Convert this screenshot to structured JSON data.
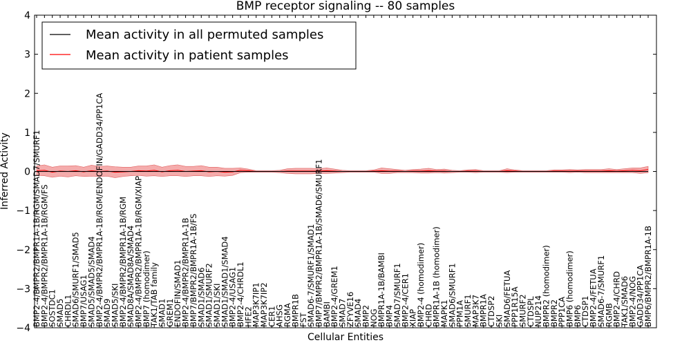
{
  "chart_data": {
    "type": "line",
    "title": "BMP receptor signaling -- 80 samples",
    "xlabel": "Cellular Entities",
    "ylabel": "Inferred Activity",
    "ylim": [
      -4,
      4
    ],
    "yticks": [
      -4,
      -3,
      -2,
      -1,
      0,
      1,
      2,
      3,
      4
    ],
    "grid": false,
    "legend_position": "top-left",
    "colors": {
      "permuted": "#000000",
      "patient": "#ff0000",
      "patient_band": "#f08080",
      "permuted_band": "#b0c4de"
    },
    "categories": [
      "BMP2-4/BMPR2/BMPR1A-1B/RGM/SMAD7/SMURF1",
      "BMP2-4/BMPR2/BMPR1A-1B/RGM/FS",
      "SOSTDC1",
      "SMAD5",
      "CHRDL1",
      "SMAD6/SMURF1/SMAD5",
      "BMP7/USAG1",
      "SMAD5/SMAD5/SMAD4",
      "BMP2-4/BMPR2/BMPR1A-1B/RGM/ENDOFIN/GADD34/PP1CA",
      "SMAD9",
      "SMAD5/SKI",
      "BMP2-4/BMPR2/BMPR1A-1B/RGM",
      "SMAD8A/SMAD8A/SMAD4",
      "BMP2-4/BMPR2/BMPR1A-1B/RGM/XIAP",
      "BMP7 (homodimer)",
      "TAK1/TAB family",
      "SMAD1",
      "GREM1",
      "ENDOFIN/SMAD1",
      "BMP2-4/BMPR2/BMPR1A-1B",
      "BMP7/BMPR2/BMPR1A-1B/FS",
      "SMAD1/SMAD6",
      "SMAD1/SMURF2",
      "SMAD1/SKI",
      "SMAD1/SMAD1/SMAD4",
      "BMP2-4/USAG1",
      "BMP2-4/CHRDL1",
      "HFE2",
      "MAP3K7IP1",
      "MAP3K7IP2",
      "CER1",
      "AHSG",
      "RGMA",
      "BMPR1B",
      "FST",
      "SMAD6-7/SMURF1/SMAD1",
      "BMP7/BMPR2/BMPR1A-1B/SMAD6/SMURF1",
      "BAMBI",
      "BMP2-4/GREM1",
      "SMAD7",
      "ZFYVE16",
      "SMAD4",
      "BMP2",
      "NOG",
      "BMPR1A-1B/BAMBI",
      "BMP4",
      "SMAD7/SMURF1",
      "BMP2-4/CER1",
      "XIAP",
      "BMP2-4 (homodimer)",
      "CHRD",
      "BMPR1A-1B (homodimer)",
      "MAPK1",
      "SMAD6/SMURF1",
      "PPM1A",
      "SMURF1",
      "MAP3K7",
      "BMPR1A",
      "CTDSP2",
      "SKI",
      "SMAD6/FETUA",
      "PPP1R15A",
      "SMURF2",
      "CTDSPL",
      "NUP214",
      "BMPR2 (homodimer)",
      "BMPR2",
      "PPP1CA",
      "BMP6 (homodimer)",
      "BMP6",
      "CTDSP1",
      "BMP2-4/FETUA",
      "SMAD6-7/SMURF1",
      "RGMB",
      "BMP2-4/CHRD",
      "TAK1/SMAD6",
      "BMP2-4/NOG",
      "GADD34/PP1CA",
      "BMP6/BMPR2/BMPR1A-1B"
    ],
    "series": [
      {
        "name": "Mean activity in all permuted samples",
        "values": [
          0.0,
          0.0,
          0.0,
          0.0,
          0.0,
          0.0,
          0.0,
          0.0,
          0.0,
          0.0,
          0.0,
          0.0,
          0.0,
          0.0,
          0.0,
          0.0,
          0.0,
          0.0,
          0.0,
          0.0,
          0.0,
          0.0,
          0.0,
          0.0,
          0.0,
          0.0,
          0.0,
          0.0,
          0.0,
          0.0,
          0.0,
          0.0,
          0.0,
          0.0,
          0.0,
          0.0,
          0.0,
          0.0,
          0.0,
          0.0,
          0.0,
          0.0,
          0.0,
          0.0,
          0.0,
          0.0,
          0.0,
          0.0,
          0.0,
          0.0,
          0.0,
          0.0,
          0.0,
          0.0,
          0.0,
          0.0,
          0.0,
          0.0,
          0.0,
          0.0,
          0.0,
          0.0,
          0.0,
          0.0,
          0.0,
          0.0,
          0.0,
          0.0,
          0.0,
          0.0,
          0.0,
          0.0,
          0.0,
          0.0,
          0.0,
          0.0,
          0.0,
          0.0,
          0.0
        ]
      },
      {
        "name": "Mean activity in patient samples",
        "values": [
          0.02,
          0.03,
          -0.02,
          0.01,
          0.0,
          0.02,
          -0.01,
          0.02,
          0.0,
          0.01,
          -0.02,
          -0.01,
          0.0,
          0.02,
          0.01,
          0.03,
          -0.01,
          0.02,
          0.03,
          0.0,
          0.01,
          0.02,
          -0.01,
          0.0,
          -0.02,
          -0.01,
          0.03,
          0.02,
          0.0,
          0.0,
          0.0,
          0.0,
          0.01,
          0.01,
          0.01,
          0.01,
          0.01,
          0.02,
          0.01,
          0.0,
          0.0,
          0.0,
          0.0,
          0.01,
          0.02,
          0.01,
          0.01,
          0.0,
          0.01,
          0.01,
          0.02,
          0.01,
          0.01,
          0.0,
          0.0,
          0.01,
          0.01,
          0.0,
          0.0,
          0.0,
          0.02,
          0.01,
          0.0,
          0.0,
          0.0,
          0.0,
          0.01,
          0.01,
          0.01,
          0.01,
          0.01,
          0.01,
          0.01,
          0.02,
          0.01,
          0.02,
          0.03,
          0.02,
          0.05
        ]
      }
    ],
    "patient_band": [
      0.12,
      0.14,
      0.13,
      0.13,
      0.14,
      0.13,
      0.12,
      0.14,
      0.13,
      0.13,
      0.14,
      0.12,
      0.11,
      0.12,
      0.13,
      0.14,
      0.12,
      0.13,
      0.14,
      0.13,
      0.12,
      0.13,
      0.12,
      0.11,
      0.1,
      0.09,
      0.06,
      0.04,
      0.02,
      0.02,
      0.02,
      0.03,
      0.06,
      0.07,
      0.07,
      0.07,
      0.06,
      0.07,
      0.05,
      0.03,
      0.02,
      0.02,
      0.02,
      0.03,
      0.07,
      0.06,
      0.04,
      0.03,
      0.04,
      0.05,
      0.06,
      0.04,
      0.05,
      0.03,
      0.02,
      0.03,
      0.04,
      0.02,
      0.02,
      0.02,
      0.05,
      0.03,
      0.02,
      0.02,
      0.02,
      0.02,
      0.03,
      0.03,
      0.04,
      0.03,
      0.04,
      0.04,
      0.04,
      0.05,
      0.04,
      0.05,
      0.06,
      0.07,
      0.08
    ],
    "permuted_band": 0.03
  }
}
